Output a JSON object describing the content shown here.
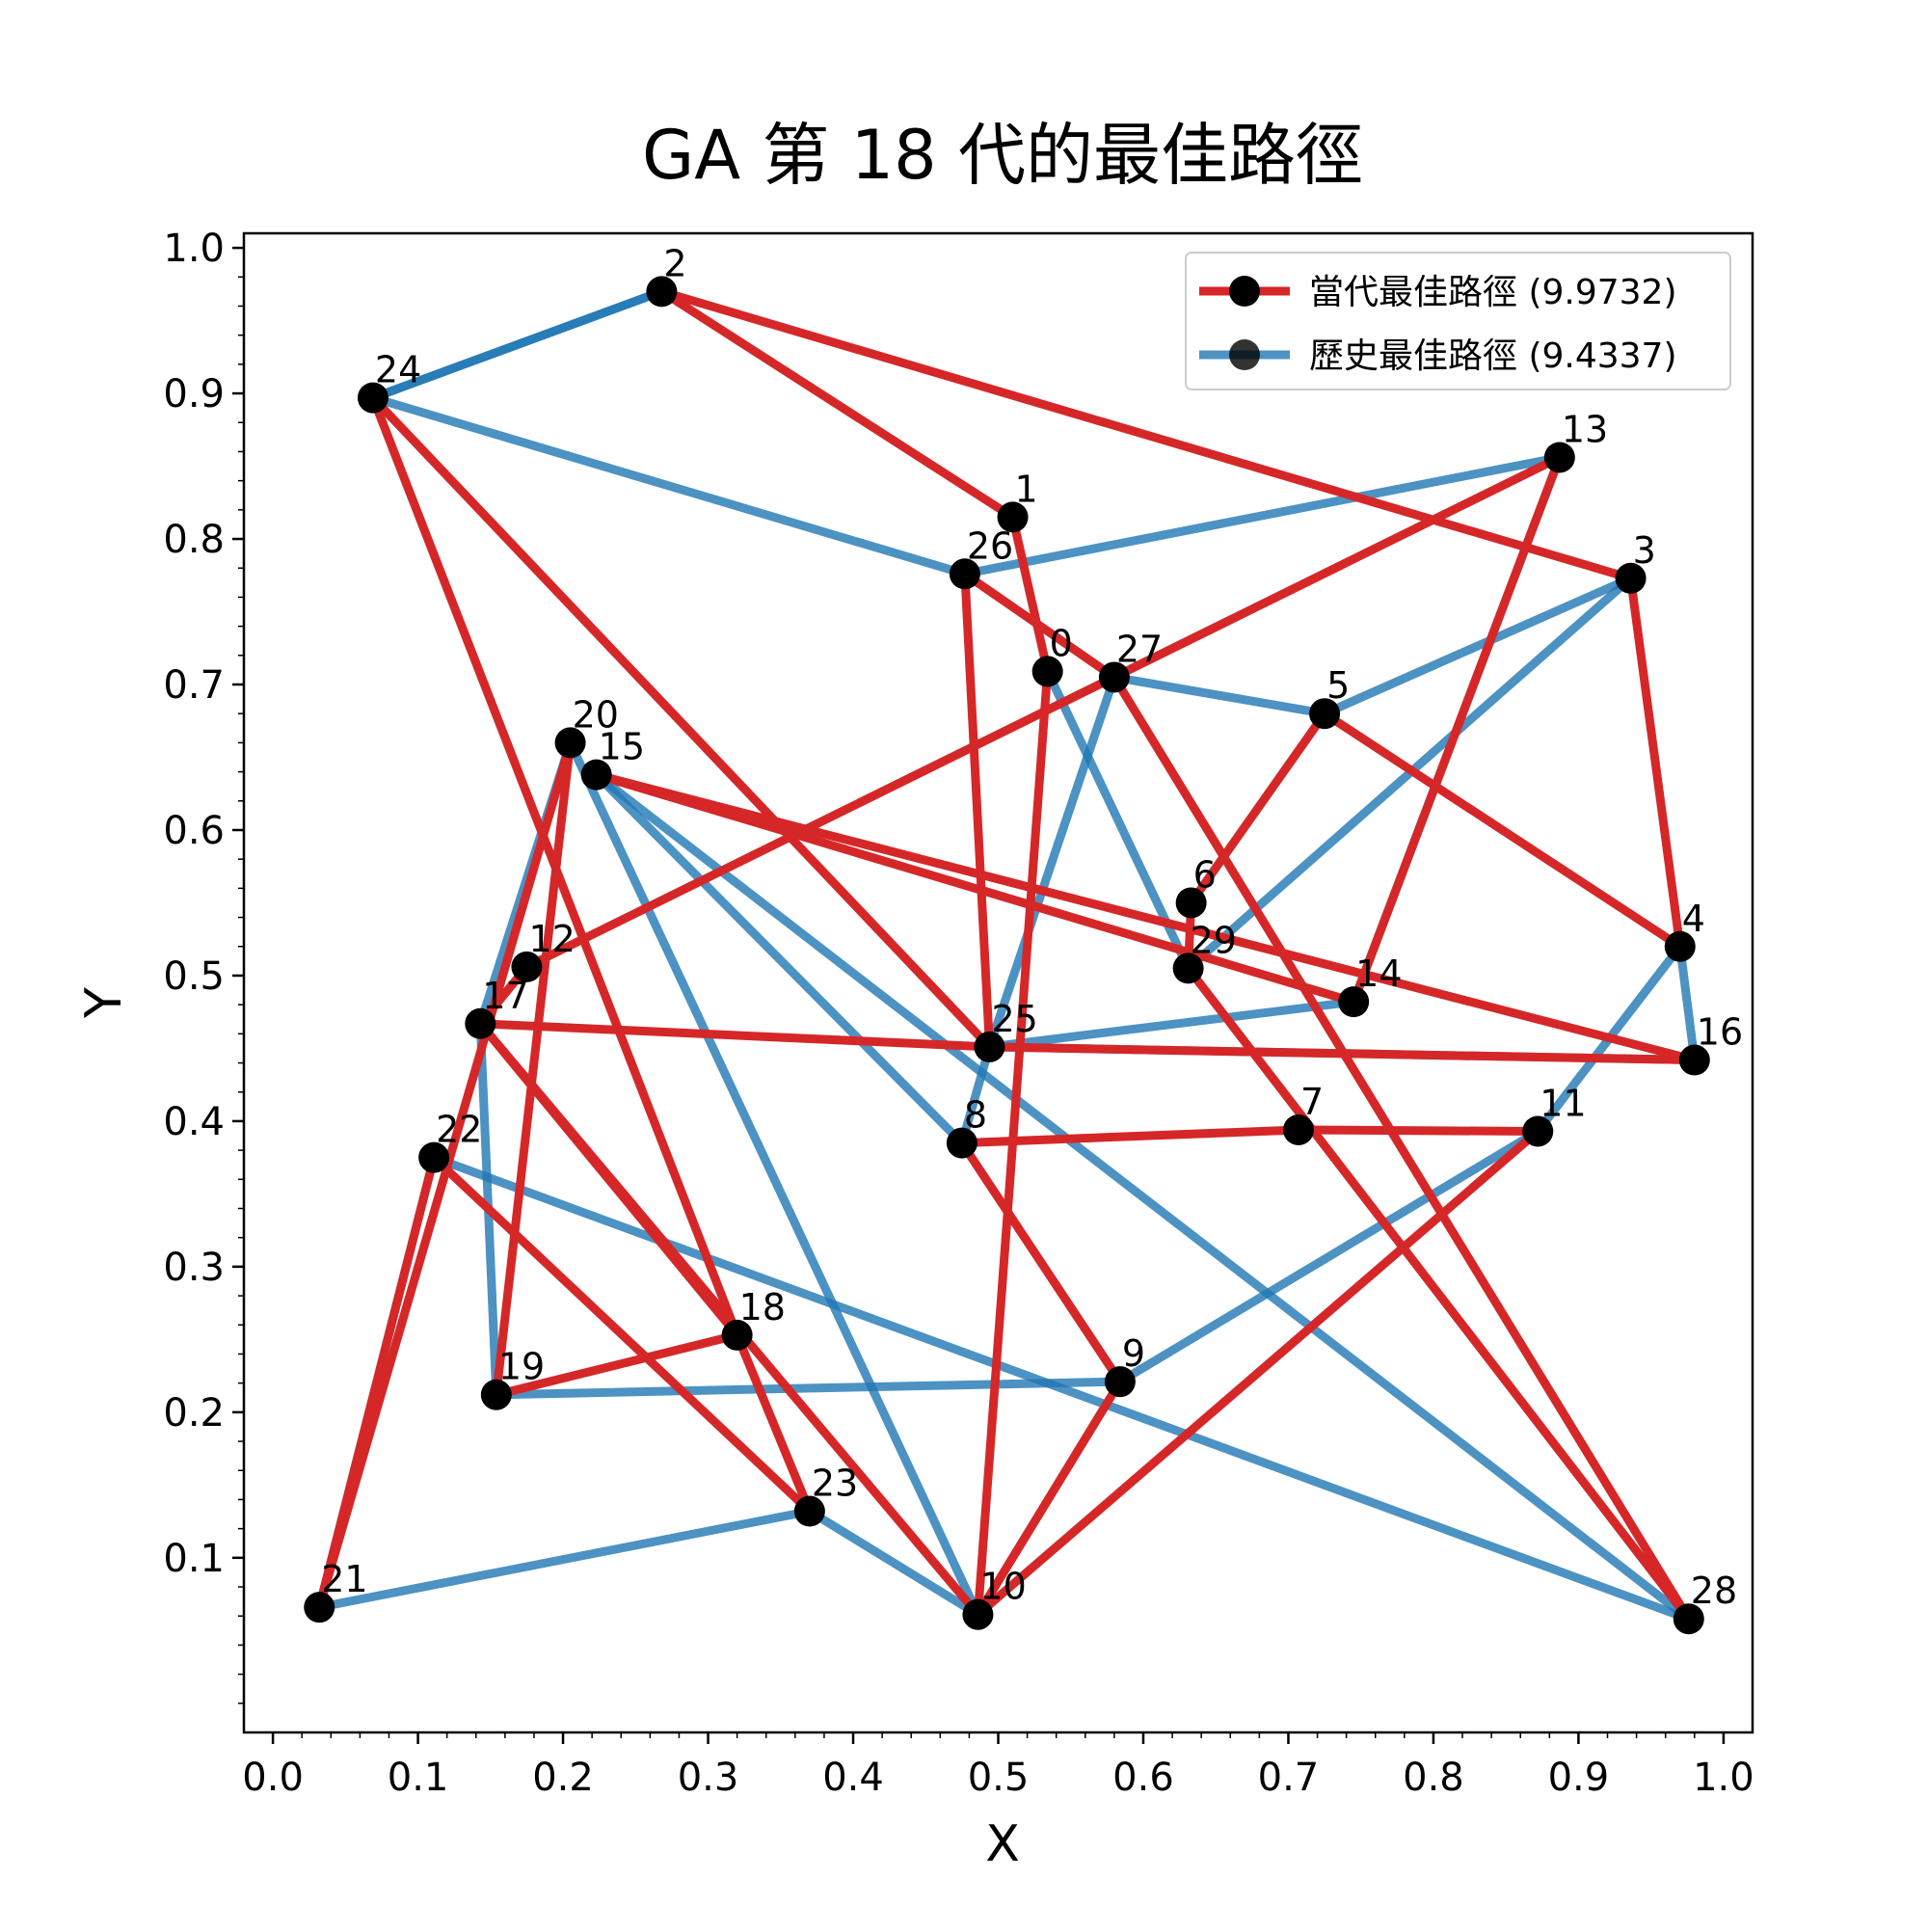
{
  "chart_data": {
    "type": "scatter",
    "title": "GA 第 18 代的最佳路徑",
    "xlabel": "X",
    "ylabel": "Y",
    "xlim": [
      -0.02,
      1.02
    ],
    "ylim": [
      -0.02,
      1.01
    ],
    "xticks": [
      "0.0",
      "0.1",
      "0.2",
      "0.3",
      "0.4",
      "0.5",
      "0.6",
      "0.7",
      "0.8",
      "0.9",
      "1.0"
    ],
    "yticks": [
      "0.1",
      "0.2",
      "0.3",
      "0.4",
      "0.5",
      "0.6",
      "0.7",
      "0.8",
      "0.9",
      "1.0"
    ],
    "grid": false,
    "legend_position": "top-right",
    "cities": [
      {
        "id": "0",
        "x": 0.534,
        "y": 0.709
      },
      {
        "id": "1",
        "x": 0.51,
        "y": 0.815
      },
      {
        "id": "2",
        "x": 0.268,
        "y": 0.97
      },
      {
        "id": "3",
        "x": 0.936,
        "y": 0.773
      },
      {
        "id": "4",
        "x": 0.97,
        "y": 0.52
      },
      {
        "id": "5",
        "x": 0.725,
        "y": 0.68
      },
      {
        "id": "6",
        "x": 0.633,
        "y": 0.55
      },
      {
        "id": "7",
        "x": 0.707,
        "y": 0.394
      },
      {
        "id": "8",
        "x": 0.475,
        "y": 0.385
      },
      {
        "id": "9",
        "x": 0.584,
        "y": 0.221
      },
      {
        "id": "10",
        "x": 0.486,
        "y": 0.061
      },
      {
        "id": "11",
        "x": 0.872,
        "y": 0.393
      },
      {
        "id": "12",
        "x": 0.175,
        "y": 0.506
      },
      {
        "id": "13",
        "x": 0.887,
        "y": 0.856
      },
      {
        "id": "14",
        "x": 0.745,
        "y": 0.482
      },
      {
        "id": "15",
        "x": 0.223,
        "y": 0.638
      },
      {
        "id": "16",
        "x": 0.98,
        "y": 0.442
      },
      {
        "id": "17",
        "x": 0.143,
        "y": 0.467
      },
      {
        "id": "18",
        "x": 0.32,
        "y": 0.253
      },
      {
        "id": "19",
        "x": 0.154,
        "y": 0.212
      },
      {
        "id": "20",
        "x": 0.205,
        "y": 0.66
      },
      {
        "id": "21",
        "x": 0.032,
        "y": 0.066
      },
      {
        "id": "22",
        "x": 0.111,
        "y": 0.375
      },
      {
        "id": "23",
        "x": 0.37,
        "y": 0.132
      },
      {
        "id": "24",
        "x": 0.069,
        "y": 0.897
      },
      {
        "id": "25",
        "x": 0.494,
        "y": 0.451
      },
      {
        "id": "26",
        "x": 0.477,
        "y": 0.776
      },
      {
        "id": "27",
        "x": 0.58,
        "y": 0.705
      },
      {
        "id": "28",
        "x": 0.976,
        "y": 0.058
      },
      {
        "id": "29",
        "x": 0.631,
        "y": 0.505
      }
    ],
    "series": [
      {
        "name": "當代最佳路徑 (9.9732)",
        "color": "#d62728",
        "route": [
          0,
          1,
          2,
          3,
          4,
          5,
          6,
          29,
          28,
          27,
          26,
          25,
          17,
          12,
          13,
          14,
          15,
          16,
          25,
          24,
          18,
          19,
          20,
          21,
          22,
          23,
          18,
          17,
          10,
          11,
          7,
          8,
          9,
          10,
          0
        ]
      },
      {
        "name": "歷史最佳路徑 (9.4337)",
        "color": "#1f77b4",
        "route": [
          24,
          2,
          24,
          26,
          13,
          14,
          25,
          16,
          4,
          11,
          9,
          19,
          17,
          20,
          10,
          23,
          21,
          22,
          28,
          15,
          8,
          25,
          27,
          5,
          3,
          29,
          0
        ]
      }
    ],
    "marker_color": "#000000"
  }
}
